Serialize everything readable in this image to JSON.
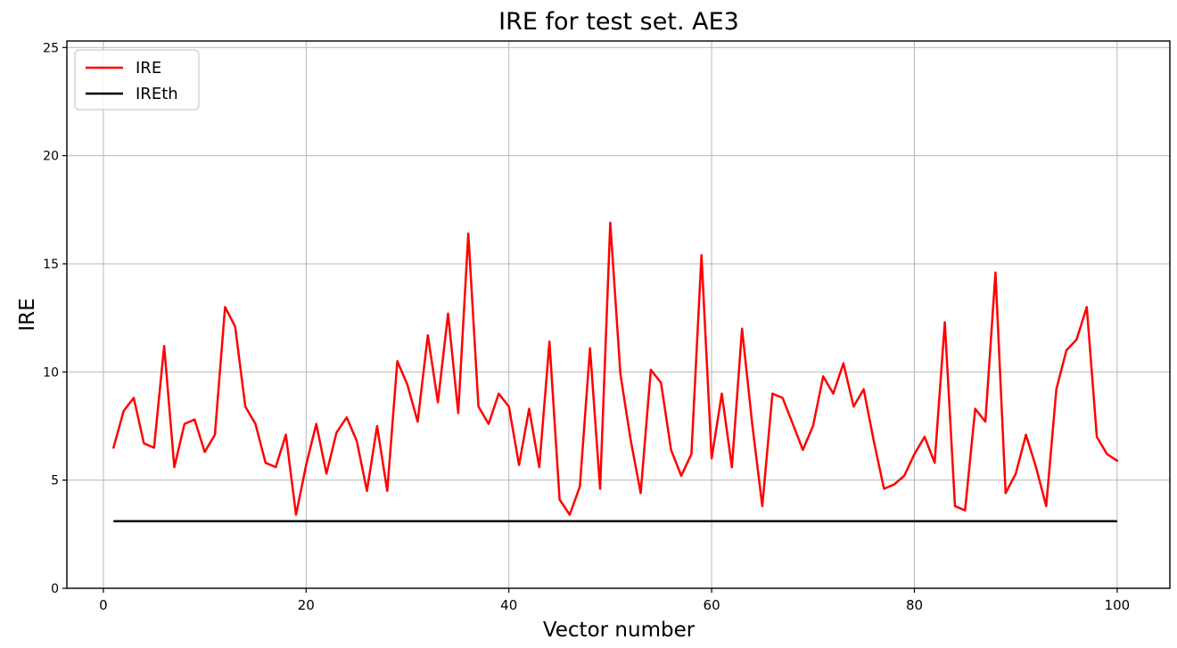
{
  "figure": {
    "title": "IRE for test set. AE3",
    "xlabel": "Vector number",
    "ylabel": "IRE",
    "background": "#ffffff"
  },
  "legend": {
    "position": "upper left",
    "items": [
      {
        "label": "IRE",
        "color": "#ff0000"
      },
      {
        "label": "IREth",
        "color": "#000000"
      }
    ]
  },
  "axes": {
    "xticks": [
      0,
      20,
      40,
      60,
      80,
      100
    ],
    "yticks": [
      0,
      5,
      10,
      15,
      20,
      25
    ],
    "grid_color": "#b8b8b8",
    "spine_color": "#000000"
  },
  "chart_data": {
    "type": "line",
    "title": "IRE for test set. AE3",
    "xlabel": "Vector number",
    "ylabel": "IRE",
    "xlim": [
      -3.6,
      105.2
    ],
    "ylim": [
      0,
      25.3
    ],
    "xticks": [
      0,
      20,
      40,
      60,
      80,
      100
    ],
    "yticks": [
      0,
      5,
      10,
      15,
      20,
      25
    ],
    "grid": true,
    "legend_position": "upper left",
    "x_start": 1,
    "x_step": 1,
    "series": [
      {
        "name": "IRE",
        "type": "line",
        "color": "#ff0000",
        "linewidth": 2.5,
        "values": [
          6.5,
          8.2,
          8.8,
          6.7,
          6.5,
          11.2,
          5.6,
          7.6,
          7.8,
          6.3,
          7.1,
          13.0,
          12.1,
          8.4,
          7.6,
          5.8,
          5.6,
          7.1,
          3.4,
          5.7,
          7.6,
          5.3,
          7.2,
          7.9,
          6.8,
          4.5,
          7.5,
          4.5,
          10.5,
          9.4,
          7.7,
          11.7,
          8.6,
          12.7,
          8.1,
          16.4,
          8.4,
          7.6,
          9.0,
          8.4,
          5.7,
          8.3,
          5.6,
          11.4,
          4.1,
          3.4,
          4.7,
          11.1,
          4.6,
          16.9,
          9.9,
          6.9,
          4.4,
          10.1,
          9.5,
          6.4,
          5.2,
          6.2,
          15.4,
          6.0,
          9.0,
          5.6,
          12.0,
          7.6,
          3.8,
          9.0,
          8.8,
          7.6,
          6.4,
          7.5,
          9.8,
          9.0,
          10.4,
          8.4,
          9.2,
          6.8,
          4.6,
          4.8,
          5.2,
          6.2,
          7.0,
          5.8,
          12.3,
          3.8,
          3.6,
          8.3,
          7.7,
          14.6,
          4.4,
          5.3,
          7.1,
          5.6,
          3.8,
          9.2,
          11.0,
          11.5,
          13.0,
          7.0,
          6.2,
          5.9
        ]
      },
      {
        "name": "IREth",
        "type": "hline",
        "color": "#000000",
        "linewidth": 2.5,
        "y": 3.1,
        "x_range": [
          1,
          100
        ]
      }
    ]
  }
}
